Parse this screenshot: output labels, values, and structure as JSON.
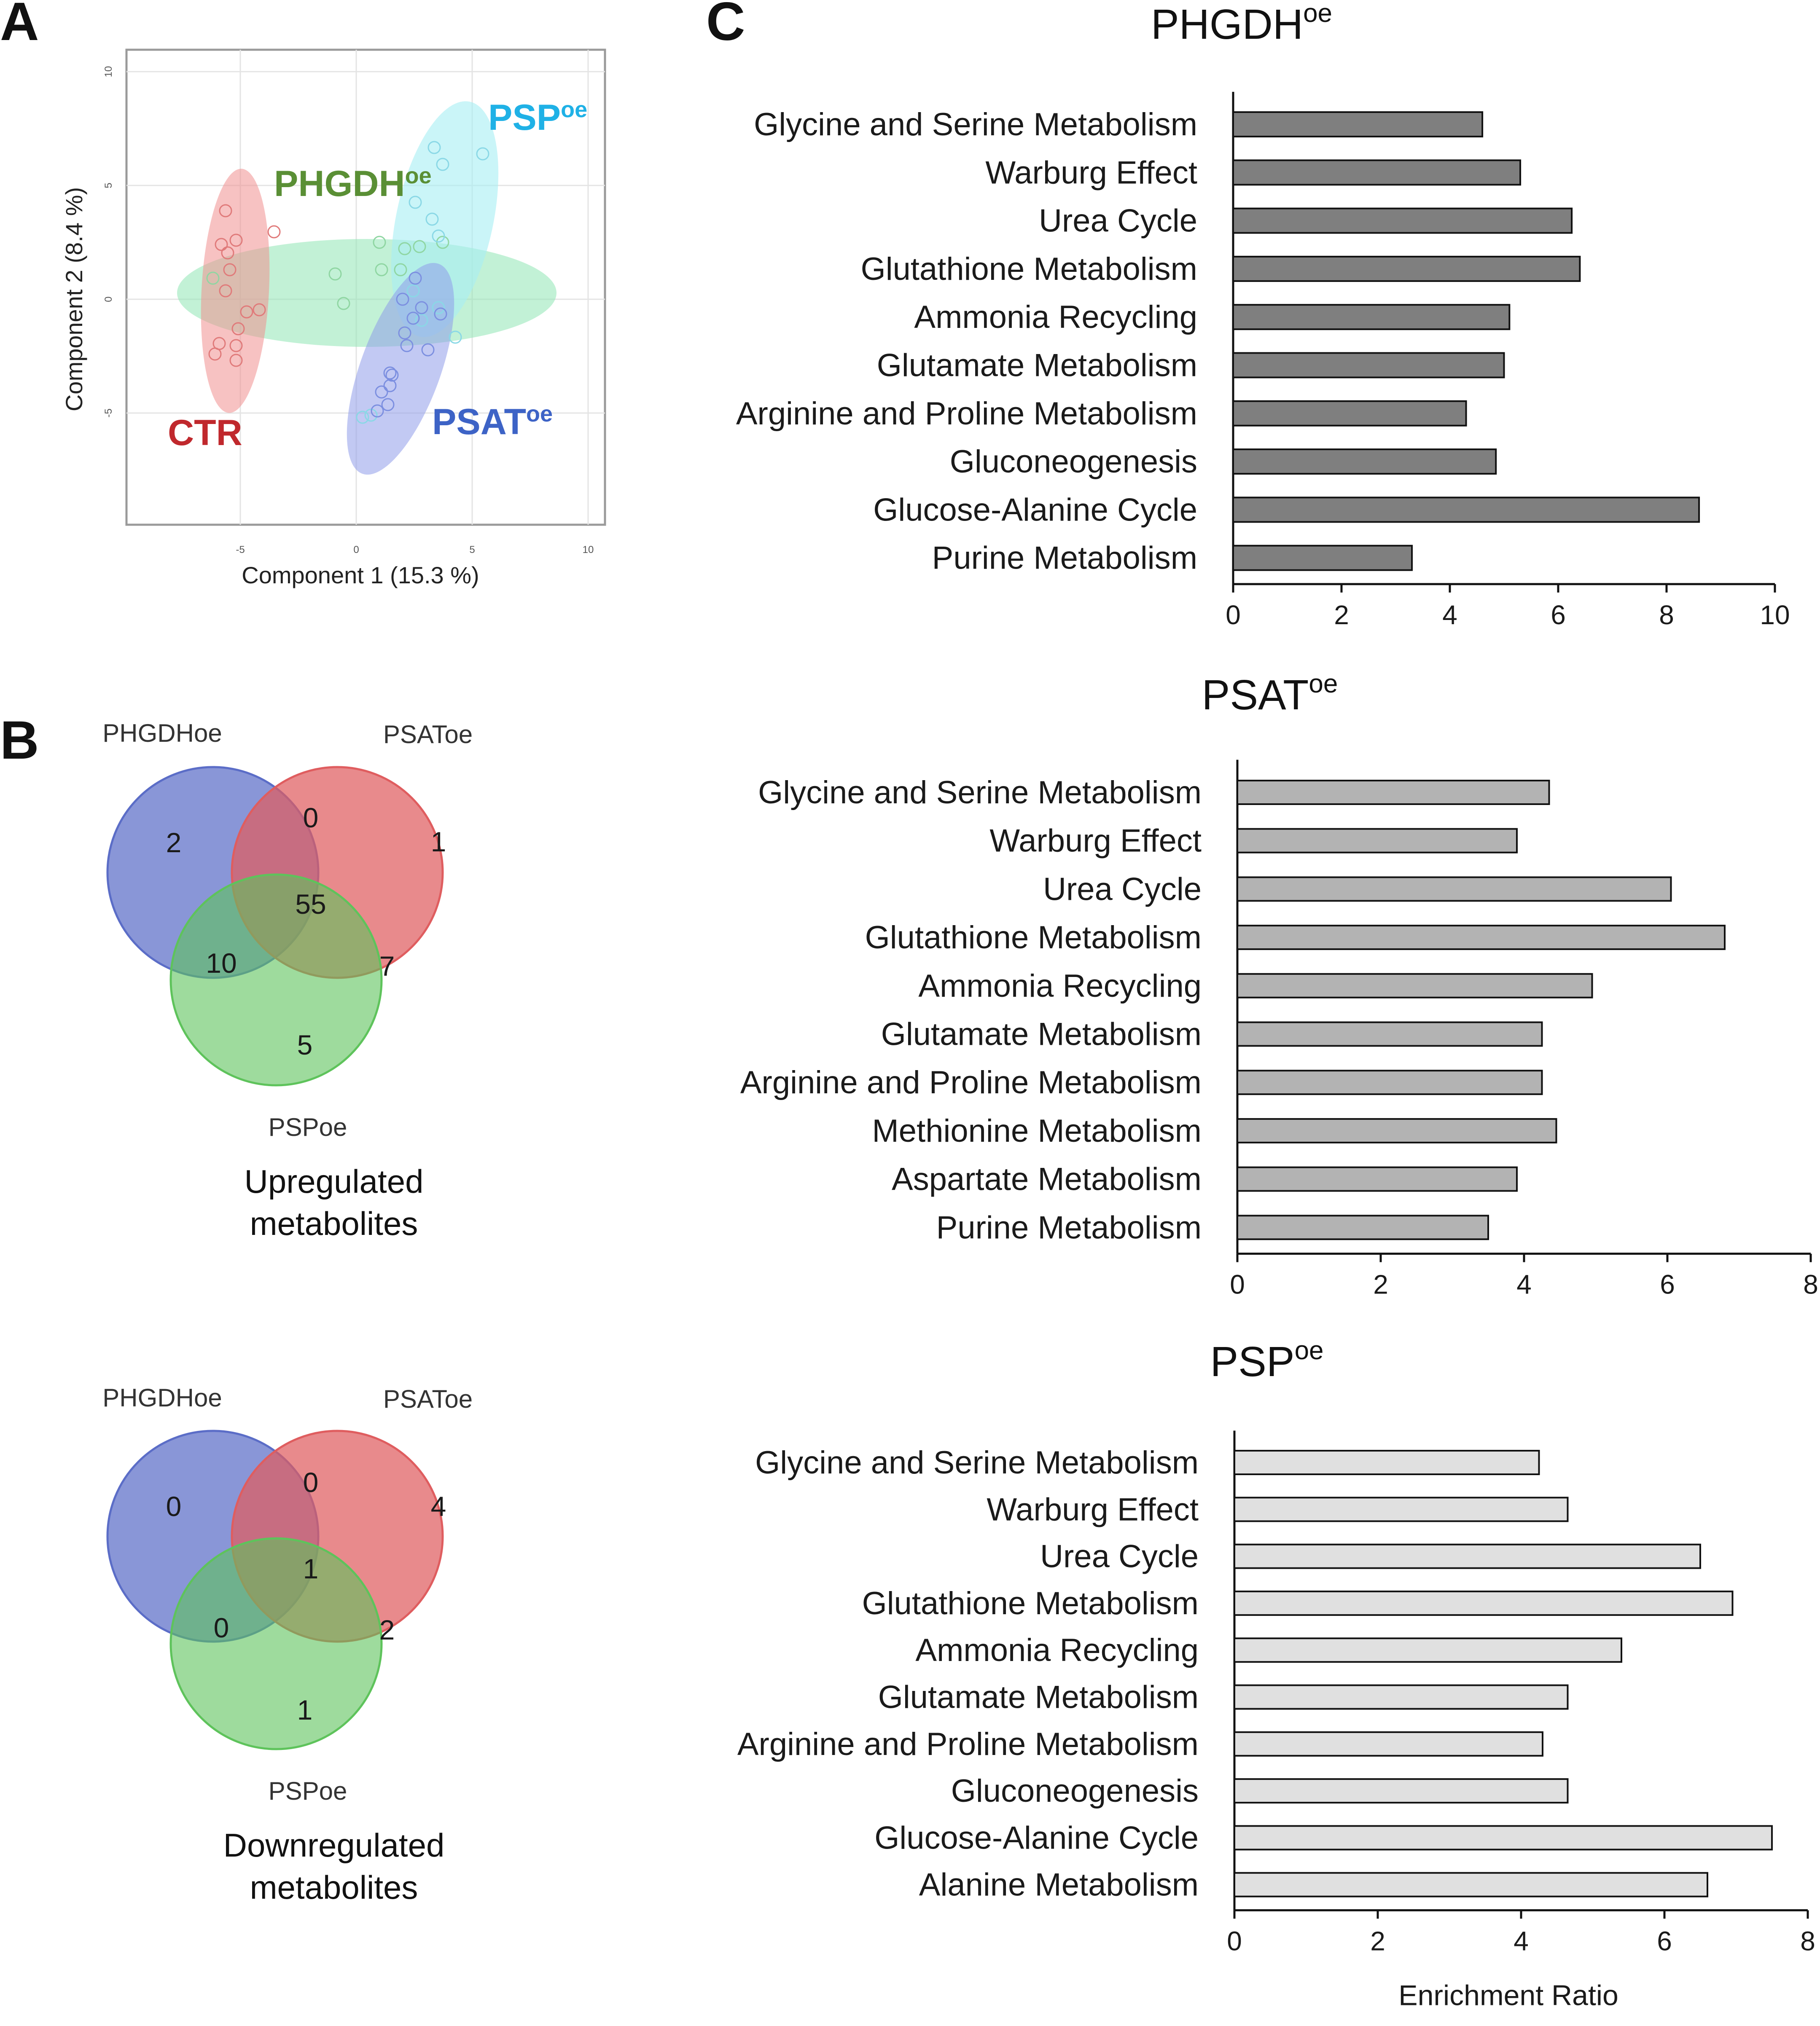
{
  "panels": {
    "a": "A",
    "b": "B",
    "c": "C"
  },
  "colors": {
    "ctr": "#c0282d",
    "phgdh": "#5a8f35",
    "psp": "#1fb1e6",
    "psat": "#3d63c6",
    "venn_phgdh": "#5b6dc7",
    "venn_psat": "#df5d5f",
    "venn_psp": "#5ec35b",
    "bar1": "#7f7f7f",
    "bar2": "#b3b3b3",
    "bar3": "#e0e0e0"
  },
  "pca": {
    "xlabel": "Component 1 (15.3 %)",
    "ylabel": "Component 2 (8.4 %)",
    "xticks": [
      "-5",
      "0",
      "5",
      "10"
    ],
    "yticks": [
      "10",
      "5",
      "0",
      "-5"
    ],
    "groups": [
      {
        "key": "phgdh",
        "name": "PHGDH",
        "sup": "oe"
      },
      {
        "key": "psp",
        "name": "PSP",
        "sup": "oe"
      },
      {
        "key": "ctr",
        "name": "CTR",
        "sup": ""
      },
      {
        "key": "psat",
        "name": "PSAT",
        "sup": "oe"
      }
    ]
  },
  "venn_up": {
    "sets": [
      "PHGDHoe",
      "PSAToe",
      "PSPoe"
    ],
    "counts": {
      "a": "2",
      "ab": "0",
      "b": "1",
      "abc": "55",
      "ac": "10",
      "bc": "7",
      "c": "5"
    },
    "caption": [
      "Upregulated",
      "metabolites"
    ]
  },
  "venn_down": {
    "sets": [
      "PHGDHoe",
      "PSAToe",
      "PSPoe"
    ],
    "counts": {
      "a": "0",
      "ab": "0",
      "b": "4",
      "abc": "1",
      "ac": "0",
      "bc": "2",
      "c": "1"
    },
    "caption": [
      "Downregulated",
      "metabolites"
    ]
  },
  "chart_data": [
    {
      "type": "bar",
      "orientation": "horizontal",
      "title": "PHGDH",
      "title_sup": "oe",
      "categories": [
        "Glycine and Serine Metabolism",
        "Warburg Effect",
        "Urea Cycle",
        "Glutathione Metabolism",
        "Ammonia Recycling",
        "Glutamate Metabolism",
        "Arginine and Proline Metabolism",
        "Gluconeogenesis",
        "Glucose-Alanine Cycle",
        "Purine Metabolism"
      ],
      "values": [
        4.6,
        5.3,
        6.25,
        6.4,
        5.1,
        5.0,
        4.3,
        4.85,
        8.6,
        3.3
      ],
      "xlim": [
        0,
        10
      ],
      "xticks": [
        0,
        2,
        4,
        6,
        8,
        10
      ],
      "xlabel": ""
    },
    {
      "type": "bar",
      "orientation": "horizontal",
      "title": "PSAT",
      "title_sup": "oe",
      "categories": [
        "Glycine and Serine Metabolism",
        "Warburg Effect",
        "Urea Cycle",
        "Glutathione Metabolism",
        "Ammonia Recycling",
        "Glutamate Metabolism",
        "Arginine and Proline Metabolism",
        "Methionine Metabolism",
        "Aspartate Metabolism",
        "Purine Metabolism"
      ],
      "values": [
        4.35,
        3.9,
        6.05,
        6.8,
        4.95,
        4.25,
        4.25,
        4.45,
        3.9,
        3.5
      ],
      "xlim": [
        0,
        8
      ],
      "xticks": [
        0,
        2,
        4,
        6,
        8
      ],
      "xlabel": ""
    },
    {
      "type": "bar",
      "orientation": "horizontal",
      "title": "PSP",
      "title_sup": "oe",
      "categories": [
        "Glycine and Serine Metabolism",
        "Warburg Effect",
        "Urea Cycle",
        "Glutathione Metabolism",
        "Ammonia Recycling",
        "Glutamate Metabolism",
        "Arginine and Proline Metabolism",
        "Gluconeogenesis",
        "Glucose-Alanine Cycle",
        "Alanine Metabolism"
      ],
      "values": [
        4.25,
        4.65,
        6.5,
        6.95,
        5.4,
        4.65,
        4.3,
        4.65,
        7.5,
        6.6
      ],
      "xlim": [
        0,
        8
      ],
      "xticks": [
        0,
        2,
        4,
        6,
        8
      ],
      "xlabel": "Enrichment Ratio"
    }
  ]
}
